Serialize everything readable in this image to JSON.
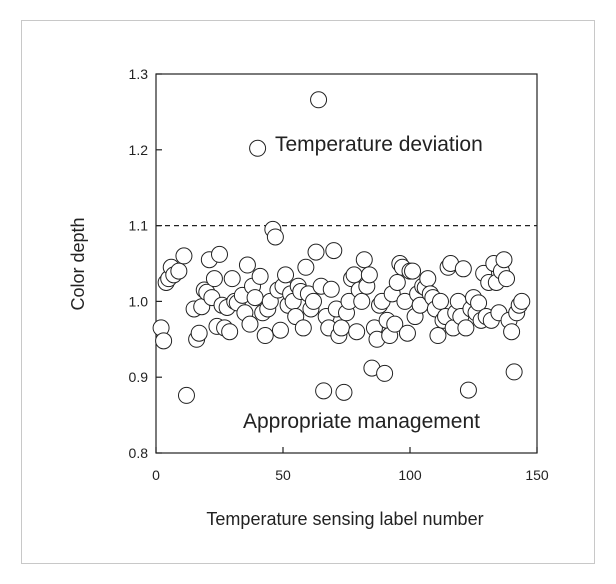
{
  "colors": {
    "border": "#c8c8c8",
    "axis": "#222222",
    "marker_fill": "#ffffff",
    "marker_stroke": "#222222",
    "threshold": "#222222"
  },
  "chart_data": {
    "type": "scatter",
    "title": "",
    "xlabel": "Temperature sensing label number",
    "ylabel": "Color depth",
    "xlim": [
      0,
      150
    ],
    "ylim": [
      0.8,
      1.3
    ],
    "xticks": [
      "0",
      "50",
      "100",
      "150"
    ],
    "yticks": [
      "0.8",
      "0.9",
      "1.0",
      "1.1",
      "1.2",
      "1.3"
    ],
    "grid": false,
    "threshold": {
      "y": 1.1,
      "style": "dashed"
    },
    "annotations": [
      {
        "text": "Temperature deviation"
      },
      {
        "text": "Appropriate management"
      }
    ],
    "points": [
      [
        2,
        0.965
      ],
      [
        3,
        0.948
      ],
      [
        4,
        1.025
      ],
      [
        5,
        1.03
      ],
      [
        6,
        1.045
      ],
      [
        7,
        1.035
      ],
      [
        9,
        1.04
      ],
      [
        11,
        1.06
      ],
      [
        12,
        0.876
      ],
      [
        15,
        0.99
      ],
      [
        16,
        0.95
      ],
      [
        17,
        0.958
      ],
      [
        18,
        0.993
      ],
      [
        19,
        1.015
      ],
      [
        20,
        1.012
      ],
      [
        21,
        1.055
      ],
      [
        22,
        1.005
      ],
      [
        23,
        1.03
      ],
      [
        24,
        0.967
      ],
      [
        25,
        1.062
      ],
      [
        26,
        0.995
      ],
      [
        27,
        0.965
      ],
      [
        28,
        0.992
      ],
      [
        29,
        0.96
      ],
      [
        30,
        1.03
      ],
      [
        31,
        1.0
      ],
      [
        32,
        0.998
      ],
      [
        34,
        1.008
      ],
      [
        35,
        0.985
      ],
      [
        36,
        1.048
      ],
      [
        37,
        0.97
      ],
      [
        38,
        1.02
      ],
      [
        39,
        1.005
      ],
      [
        40,
        1.202
      ],
      [
        41,
        1.033
      ],
      [
        42,
        0.985
      ],
      [
        43,
        0.955
      ],
      [
        44,
        0.99
      ],
      [
        45,
        1.0
      ],
      [
        46,
        1.095
      ],
      [
        47,
        1.085
      ],
      [
        48,
        1.015
      ],
      [
        49,
        0.962
      ],
      [
        50,
        1.02
      ],
      [
        51,
        1.035
      ],
      [
        52,
        0.995
      ],
      [
        53,
        1.01
      ],
      [
        54,
        1.0
      ],
      [
        55,
        0.98
      ],
      [
        56,
        1.02
      ],
      [
        57,
        1.013
      ],
      [
        58,
        0.965
      ],
      [
        59,
        1.045
      ],
      [
        60,
        1.01
      ],
      [
        61,
        0.99
      ],
      [
        62,
        1.0
      ],
      [
        63,
        1.065
      ],
      [
        64,
        1.266
      ],
      [
        65,
        1.02
      ],
      [
        66,
        0.882
      ],
      [
        67,
        0.98
      ],
      [
        68,
        0.965
      ],
      [
        69,
        1.016
      ],
      [
        70,
        1.067
      ],
      [
        71,
        0.99
      ],
      [
        72,
        0.955
      ],
      [
        73,
        0.965
      ],
      [
        74,
        0.88
      ],
      [
        75,
        0.985
      ],
      [
        76,
        1.0
      ],
      [
        77,
        1.03
      ],
      [
        78,
        1.035
      ],
      [
        79,
        0.96
      ],
      [
        80,
        1.015
      ],
      [
        81,
        1.0
      ],
      [
        82,
        1.055
      ],
      [
        83,
        1.02
      ],
      [
        84,
        1.035
      ],
      [
        85,
        0.912
      ],
      [
        86,
        0.965
      ],
      [
        87,
        0.95
      ],
      [
        88,
        0.995
      ],
      [
        89,
        1.0
      ],
      [
        90,
        0.905
      ],
      [
        91,
        0.975
      ],
      [
        92,
        0.955
      ],
      [
        93,
        1.01
      ],
      [
        94,
        0.97
      ],
      [
        95,
        1.025
      ],
      [
        96,
        1.05
      ],
      [
        97,
        1.045
      ],
      [
        98,
        1.0
      ],
      [
        99,
        0.958
      ],
      [
        100,
        1.04
      ],
      [
        101,
        1.04
      ],
      [
        102,
        0.98
      ],
      [
        103,
        1.01
      ],
      [
        104,
        0.995
      ],
      [
        105,
        1.02
      ],
      [
        106,
        1.018
      ],
      [
        107,
        1.03
      ],
      [
        108,
        1.01
      ],
      [
        109,
        1.005
      ],
      [
        110,
        0.99
      ],
      [
        111,
        0.955
      ],
      [
        112,
        1.0
      ],
      [
        113,
        0.975
      ],
      [
        114,
        0.98
      ],
      [
        115,
        1.045
      ],
      [
        116,
        1.05
      ],
      [
        117,
        0.965
      ],
      [
        118,
        0.985
      ],
      [
        119,
        1.0
      ],
      [
        120,
        0.98
      ],
      [
        121,
        1.043
      ],
      [
        122,
        0.965
      ],
      [
        123,
        0.883
      ],
      [
        124,
        0.99
      ],
      [
        125,
        1.005
      ],
      [
        126,
        0.985
      ],
      [
        127,
        0.998
      ],
      [
        128,
        0.975
      ],
      [
        129,
        1.037
      ],
      [
        130,
        0.98
      ],
      [
        131,
        1.025
      ],
      [
        132,
        0.975
      ],
      [
        133,
        1.05
      ],
      [
        134,
        1.025
      ],
      [
        135,
        0.985
      ],
      [
        136,
        1.04
      ],
      [
        137,
        1.055
      ],
      [
        138,
        1.03
      ],
      [
        139,
        0.975
      ],
      [
        140,
        0.96
      ],
      [
        141,
        0.907
      ],
      [
        142,
        0.985
      ],
      [
        143,
        0.995
      ],
      [
        144,
        1.0
      ]
    ]
  }
}
